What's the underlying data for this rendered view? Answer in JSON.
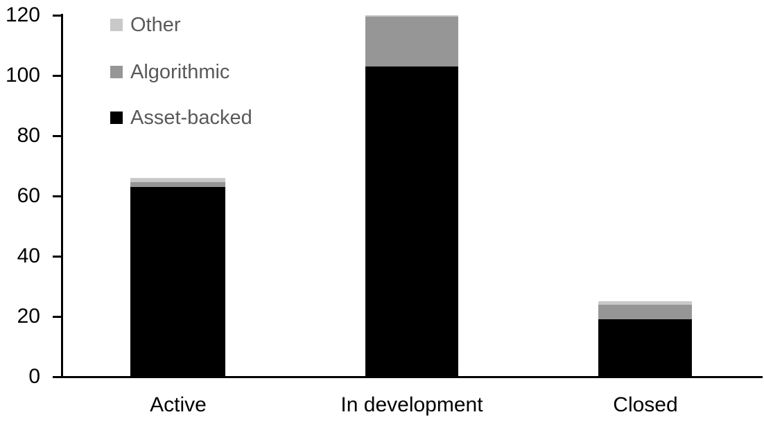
{
  "chart_data": {
    "type": "bar",
    "stacked": true,
    "title": "",
    "xlabel": "",
    "ylabel": "",
    "categories": [
      "Active",
      "In development",
      "Closed"
    ],
    "series": [
      {
        "name": "Asset-backed",
        "color": "#000000",
        "values": [
          63,
          103,
          19
        ]
      },
      {
        "name": "Algorithmic",
        "color": "#969696",
        "values": [
          1.5,
          16.5,
          5
        ]
      },
      {
        "name": "Other",
        "color": "#c9c9c9",
        "values": [
          1.5,
          0.5,
          1
        ]
      }
    ],
    "ylim": [
      0,
      120
    ],
    "yticks": [
      0,
      20,
      40,
      60,
      80,
      100,
      120
    ],
    "grid": false,
    "legend_position": "top-left",
    "axis_color": "#000000",
    "legend_text_color": "#595959"
  },
  "legend": {
    "items": [
      {
        "label": "Other",
        "color": "#c9c9c9"
      },
      {
        "label": "Algorithmic",
        "color": "#969696"
      },
      {
        "label": "Asset-backed",
        "color": "#000000"
      }
    ]
  }
}
